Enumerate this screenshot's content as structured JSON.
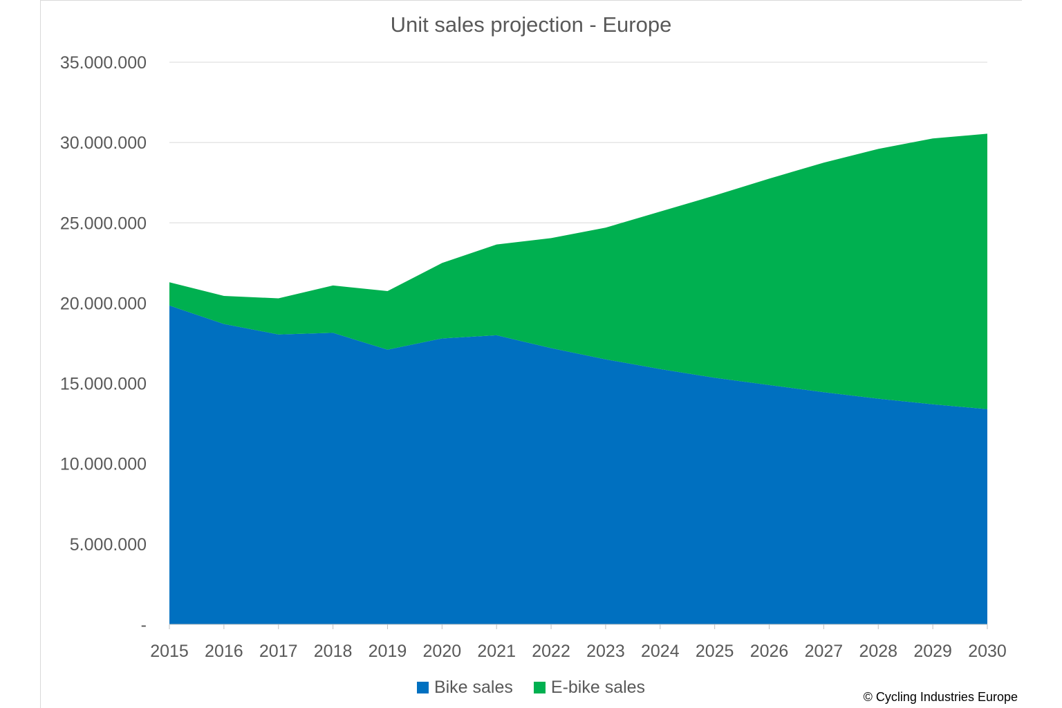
{
  "chart_data": {
    "type": "area",
    "stacked": true,
    "title": "Unit sales projection - Europe",
    "xlabel": "",
    "ylabel": "",
    "x": [
      "2015",
      "2016",
      "2017",
      "2018",
      "2019",
      "2020",
      "2021",
      "2022",
      "2023",
      "2024",
      "2025",
      "2026",
      "2027",
      "2028",
      "2029",
      "2030"
    ],
    "ylim": [
      0,
      35000000
    ],
    "yticks": [
      0,
      5000000,
      10000000,
      15000000,
      20000000,
      25000000,
      30000000,
      35000000
    ],
    "ytick_labels": [
      "-",
      "5.000.000",
      "10.000.000",
      "15.000.000",
      "20.000.000",
      "25.000.000",
      "30.000.000",
      "35.000.000"
    ],
    "grid": true,
    "legend_position": "bottom",
    "series": [
      {
        "name": "Bike sales",
        "color": "#0070C0",
        "values": [
          19850000,
          18700000,
          18050000,
          18150000,
          17100000,
          17800000,
          18000000,
          17200000,
          16500000,
          15900000,
          15350000,
          14900000,
          14450000,
          14050000,
          13700000,
          13400000
        ]
      },
      {
        "name": "E-bike sales",
        "color": "#00B050",
        "values": [
          1450000,
          1750000,
          2250000,
          2950000,
          3650000,
          4700000,
          5650000,
          6850000,
          8200000,
          9800000,
          11350000,
          12850000,
          14300000,
          15550000,
          16550000,
          17150000
        ]
      }
    ],
    "copyright": "© Cycling Industries Europe"
  }
}
